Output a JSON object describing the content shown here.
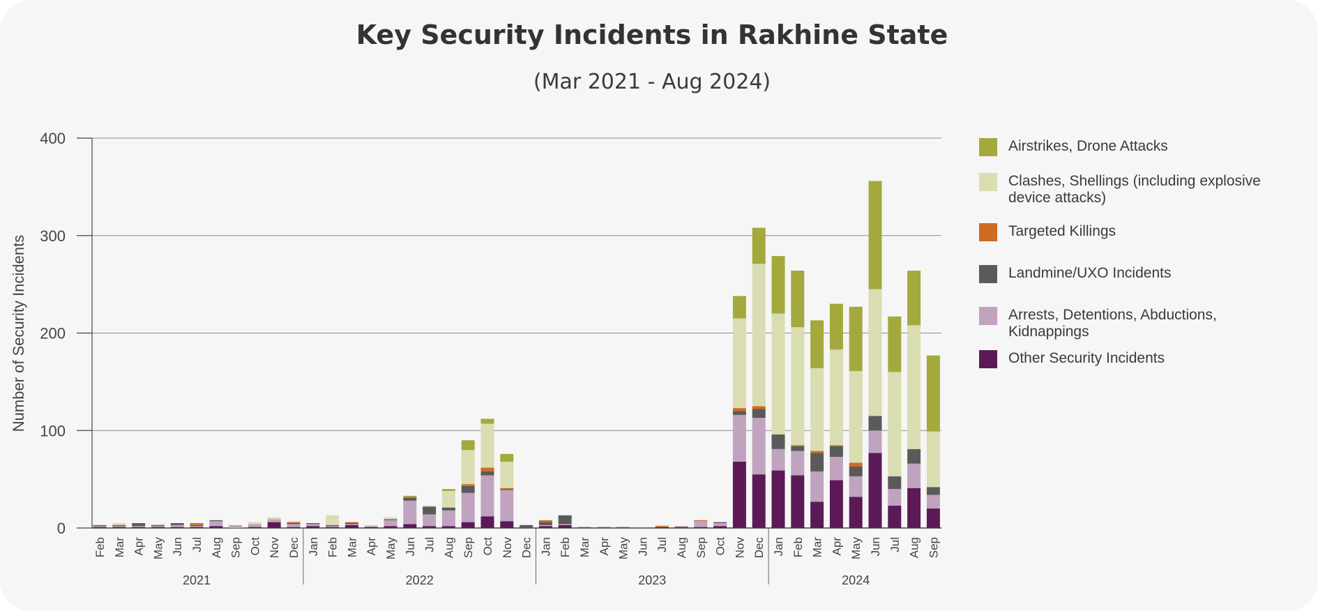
{
  "chart_data": {
    "type": "bar",
    "stacked": true,
    "title": "Key Security Incidents in Rakhine State",
    "subtitle": "(Mar 2021 - Aug 2024)",
    "ylabel": "Number of Security Incidents",
    "ylim": [
      0,
      400
    ],
    "yticks": [
      0,
      100,
      200,
      300,
      400
    ],
    "grid": true,
    "legend_position": "right",
    "months": [
      "Feb",
      "Mar",
      "Apr",
      "May",
      "Jun",
      "Jul",
      "Aug",
      "Sep",
      "Oct",
      "Nov",
      "Dec",
      "Jan",
      "Feb",
      "Mar",
      "Apr",
      "May",
      "Jun",
      "Jul",
      "Aug",
      "Sep",
      "Oct",
      "Nov",
      "Dec",
      "Jan",
      "Feb",
      "Mar",
      "Apr",
      "May",
      "Jun",
      "Jul",
      "Aug",
      "Sep",
      "Oct",
      "Nov",
      "Dec",
      "Jan",
      "Feb",
      "Mar",
      "Apr",
      "May",
      "Jun",
      "Jul",
      "Aug",
      "Sep"
    ],
    "years": [
      {
        "label": "2021",
        "start": 0,
        "end": 10
      },
      {
        "label": "2022",
        "start": 11,
        "end": 22
      },
      {
        "label": "2023",
        "start": 23,
        "end": 34
      },
      {
        "label": "2024",
        "start": 35,
        "end": 43
      }
    ],
    "series": [
      {
        "name": "Other Security Incidents",
        "color": "#5b1a57",
        "values": [
          1,
          1,
          1,
          1,
          1,
          1,
          2,
          0,
          1,
          6,
          1,
          2,
          1,
          3,
          1,
          2,
          4,
          2,
          2,
          6,
          12,
          7,
          0,
          2,
          3,
          0,
          0,
          0,
          0,
          1,
          1,
          1,
          2,
          68,
          55,
          59,
          54,
          27,
          49,
          32,
          77,
          23,
          41,
          20
        ]
      },
      {
        "name": "Arrests, Detentions, Abductions, Kidnappings",
        "color": "#c0a3be",
        "values": [
          1,
          1,
          1,
          1,
          2,
          1,
          5,
          3,
          3,
          3,
          3,
          2,
          1,
          1,
          1,
          6,
          24,
          12,
          16,
          30,
          42,
          32,
          0,
          1,
          1,
          0,
          0,
          0,
          0,
          0,
          1,
          6,
          3,
          48,
          58,
          22,
          25,
          31,
          24,
          21,
          23,
          17,
          25,
          14
        ]
      },
      {
        "name": "Landmine/UXO Incidents",
        "color": "#5a5a5a",
        "values": [
          1,
          1,
          3,
          1,
          2,
          1,
          1,
          0,
          0,
          0,
          1,
          1,
          1,
          1,
          0,
          1,
          3,
          8,
          3,
          7,
          4,
          1,
          3,
          3,
          9,
          1,
          1,
          1,
          0,
          0,
          0,
          0,
          1,
          4,
          9,
          15,
          5,
          19,
          11,
          10,
          15,
          13,
          15,
          8
        ]
      },
      {
        "name": "Targeted Killings",
        "color": "#cf6b22",
        "values": [
          0,
          0,
          0,
          0,
          0,
          2,
          0,
          0,
          0,
          0,
          1,
          0,
          0,
          1,
          0,
          0,
          1,
          0,
          0,
          2,
          4,
          1,
          0,
          2,
          0,
          0,
          0,
          0,
          0,
          1,
          0,
          1,
          0,
          3,
          3,
          0,
          1,
          2,
          1,
          4,
          0,
          0,
          0,
          0
        ]
      },
      {
        "name": "Clashes, Shellings (including explosive device attacks)",
        "color": "#d9ddb1",
        "values": [
          0,
          2,
          0,
          1,
          0,
          0,
          0,
          0,
          2,
          2,
          1,
          0,
          10,
          0,
          1,
          2,
          0,
          1,
          17,
          35,
          45,
          27,
          0,
          0,
          0,
          0,
          0,
          0,
          0,
          1,
          0,
          0,
          0,
          92,
          146,
          124,
          121,
          85,
          98,
          94,
          130,
          107,
          127,
          57
        ]
      },
      {
        "name": "Airstrikes, Drone Attacks",
        "color": "#a3a93c",
        "values": [
          0,
          0,
          0,
          0,
          0,
          0,
          0,
          0,
          0,
          0,
          0,
          0,
          0,
          0,
          0,
          0,
          1,
          0,
          2,
          10,
          5,
          8,
          0,
          0,
          0,
          0,
          0,
          0,
          0,
          0,
          0,
          0,
          0,
          23,
          37,
          59,
          58,
          49,
          47,
          66,
          111,
          57,
          56,
          78
        ]
      }
    ]
  },
  "legend_order": [
    5,
    4,
    3,
    2,
    1,
    0
  ]
}
